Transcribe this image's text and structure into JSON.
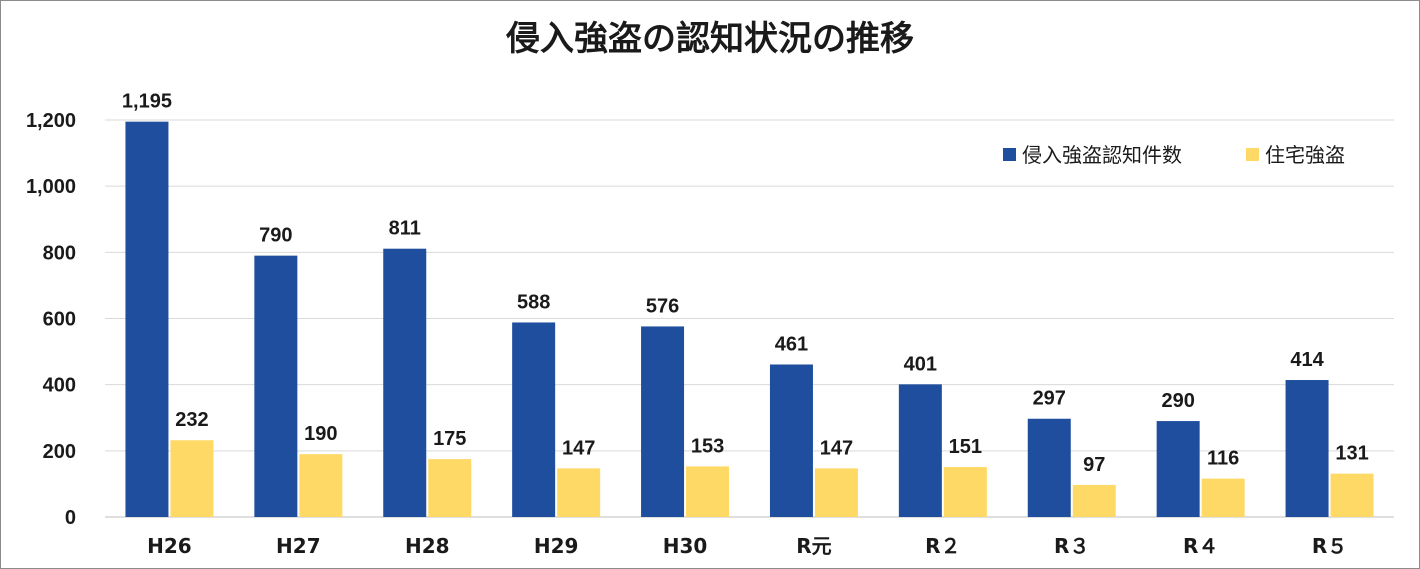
{
  "chart_data": {
    "type": "bar",
    "title": "侵入強盗の認知状況の推移",
    "xlabel": "",
    "ylabel": "",
    "categories": [
      "H26",
      "H27",
      "H28",
      "H29",
      "H30",
      "R元",
      "R2",
      "R3",
      "R4",
      "R5"
    ],
    "category_labels": [
      "H26",
      "H27",
      "H28",
      "H29",
      "H30",
      "R元",
      "R２",
      "R３",
      "R４",
      "R５"
    ],
    "series": [
      {
        "name": "侵入強盗認知件数",
        "color": "#1f4e9e",
        "values": [
          1195,
          790,
          811,
          588,
          576,
          461,
          401,
          297,
          290,
          414
        ],
        "labels": [
          "1,195",
          "790",
          "811",
          "588",
          "576",
          "461",
          "401",
          "297",
          "290",
          "414"
        ]
      },
      {
        "name": "住宅強盗",
        "color": "#ffd966",
        "values": [
          232,
          190,
          175,
          147,
          153,
          147,
          151,
          97,
          116,
          131
        ],
        "labels": [
          "232",
          "190",
          "175",
          "147",
          "153",
          "147",
          "151",
          "97",
          "116",
          "131"
        ]
      }
    ],
    "ylim": [
      0,
      1200
    ],
    "yticks": [
      0,
      200,
      400,
      600,
      800,
      1000,
      1200
    ],
    "ytick_labels": [
      "0",
      "200",
      "400",
      "600",
      "800",
      "1,000",
      "1,200"
    ],
    "grid": true,
    "legend_position": "top-right"
  }
}
